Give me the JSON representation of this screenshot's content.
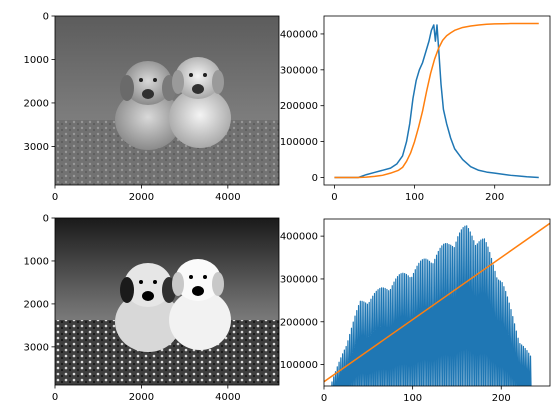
{
  "chart_data": [
    {
      "type": "image",
      "content": "grayscale photograph of two puppies sitting on grass",
      "xlim": [
        0,
        5184
      ],
      "ylim": [
        3888,
        0
      ],
      "xticks": [
        0,
        2000,
        4000
      ],
      "yticks": [
        0,
        1000,
        2000,
        3000
      ],
      "contrast": "original"
    },
    {
      "type": "line",
      "xlim": [
        -13,
        269
      ],
      "ylim": [
        -21000,
        450000
      ],
      "xticks": [
        0,
        100,
        200
      ],
      "yticks": [
        0,
        100000,
        200000,
        300000,
        400000
      ],
      "series": [
        {
          "color": "#1f77b4",
          "x": [
            0,
            30,
            36,
            40,
            50,
            60,
            70,
            78,
            85,
            90,
            94,
            98,
            102,
            106,
            110,
            114,
            118,
            121,
            124,
            126,
            128,
            130,
            133,
            136,
            140,
            145,
            150,
            155,
            160,
            170,
            180,
            190,
            200,
            210,
            220,
            230,
            240,
            255
          ],
          "y": [
            0,
            0,
            5000,
            8000,
            14000,
            20000,
            26000,
            38000,
            60000,
            100000,
            150000,
            220000,
            270000,
            300000,
            320000,
            350000,
            380000,
            410000,
            425000,
            380000,
            425000,
            360000,
            260000,
            190000,
            150000,
            110000,
            80000,
            65000,
            50000,
            30000,
            20000,
            15000,
            12000,
            9000,
            6000,
            4000,
            2000,
            0
          ]
        },
        {
          "color": "#ff7f0e",
          "x": [
            0,
            30,
            40,
            50,
            60,
            70,
            80,
            85,
            90,
            95,
            100,
            105,
            110,
            115,
            120,
            125,
            130,
            135,
            140,
            145,
            150,
            160,
            170,
            180,
            190,
            200,
            210,
            220,
            230,
            240,
            255
          ],
          "y": [
            0,
            0,
            1000,
            3000,
            6000,
            12000,
            20000,
            28000,
            45000,
            68000,
            100000,
            140000,
            185000,
            240000,
            290000,
            330000,
            360000,
            382000,
            395000,
            403000,
            410000,
            418000,
            422000,
            425000,
            427000,
            428000,
            428500,
            429000,
            429000,
            429000,
            429000
          ]
        }
      ]
    },
    {
      "type": "image",
      "content": "contrast-enhanced grayscale photograph of two puppies sitting on grass",
      "xlim": [
        0,
        5184
      ],
      "ylim": [
        3888,
        0
      ],
      "xticks": [
        0,
        2000,
        4000
      ],
      "yticks": [
        0,
        1000,
        2000,
        3000
      ],
      "contrast": "equalized"
    },
    {
      "type": "line",
      "xlim": [
        0,
        255
      ],
      "ylim": [
        50000,
        440000
      ],
      "xticks": [
        0,
        100,
        200
      ],
      "yticks": [
        100000,
        200000,
        300000,
        400000
      ],
      "series": [
        {
          "color": "#1f77b4",
          "kind": "comb",
          "x_start": 8,
          "x_end": 232,
          "step": 2,
          "low": 0,
          "envelope_x": [
            8,
            20,
            30,
            40,
            60,
            80,
            100,
            120,
            140,
            150,
            160,
            170,
            180,
            190,
            200,
            210,
            220,
            232
          ],
          "envelope_y": [
            60000,
            130000,
            190000,
            250000,
            275000,
            305000,
            330000,
            360000,
            390000,
            415000,
            425000,
            410000,
            395000,
            345000,
            300000,
            230000,
            160000,
            120000
          ]
        },
        {
          "color": "#ff7f0e",
          "x": [
            0,
            255
          ],
          "y": [
            60000,
            430000
          ]
        }
      ]
    }
  ]
}
